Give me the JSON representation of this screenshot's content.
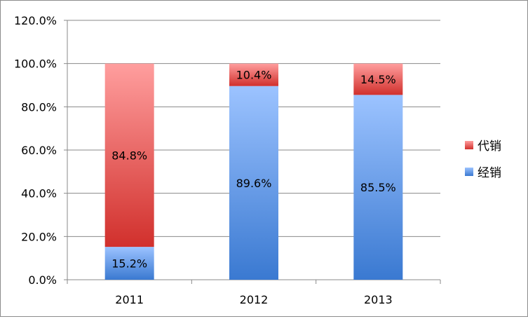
{
  "chart_data": {
    "type": "bar",
    "stacked": true,
    "categories": [
      "2011",
      "2012",
      "2013"
    ],
    "series": [
      {
        "name": "经销",
        "values": [
          15.2,
          89.6,
          85.5
        ],
        "labels": [
          "15.2%",
          "89.6%",
          "85.5%"
        ],
        "color_top": "#9cc3ff",
        "color_bottom": "#3a79d1"
      },
      {
        "name": "代销",
        "values": [
          84.8,
          10.4,
          14.5
        ],
        "labels": [
          "84.8%",
          "10.4%",
          "14.5%"
        ],
        "color_top": "#ff9e9e",
        "color_bottom": "#d1302c"
      }
    ],
    "y_ticks": [
      "0.0%",
      "20.0%",
      "40.0%",
      "60.0%",
      "80.0%",
      "100.0%",
      "120.0%"
    ],
    "ylim": [
      0,
      120
    ],
    "grid": true,
    "legend_position": "right",
    "legend": [
      "代销",
      "经销"
    ]
  }
}
